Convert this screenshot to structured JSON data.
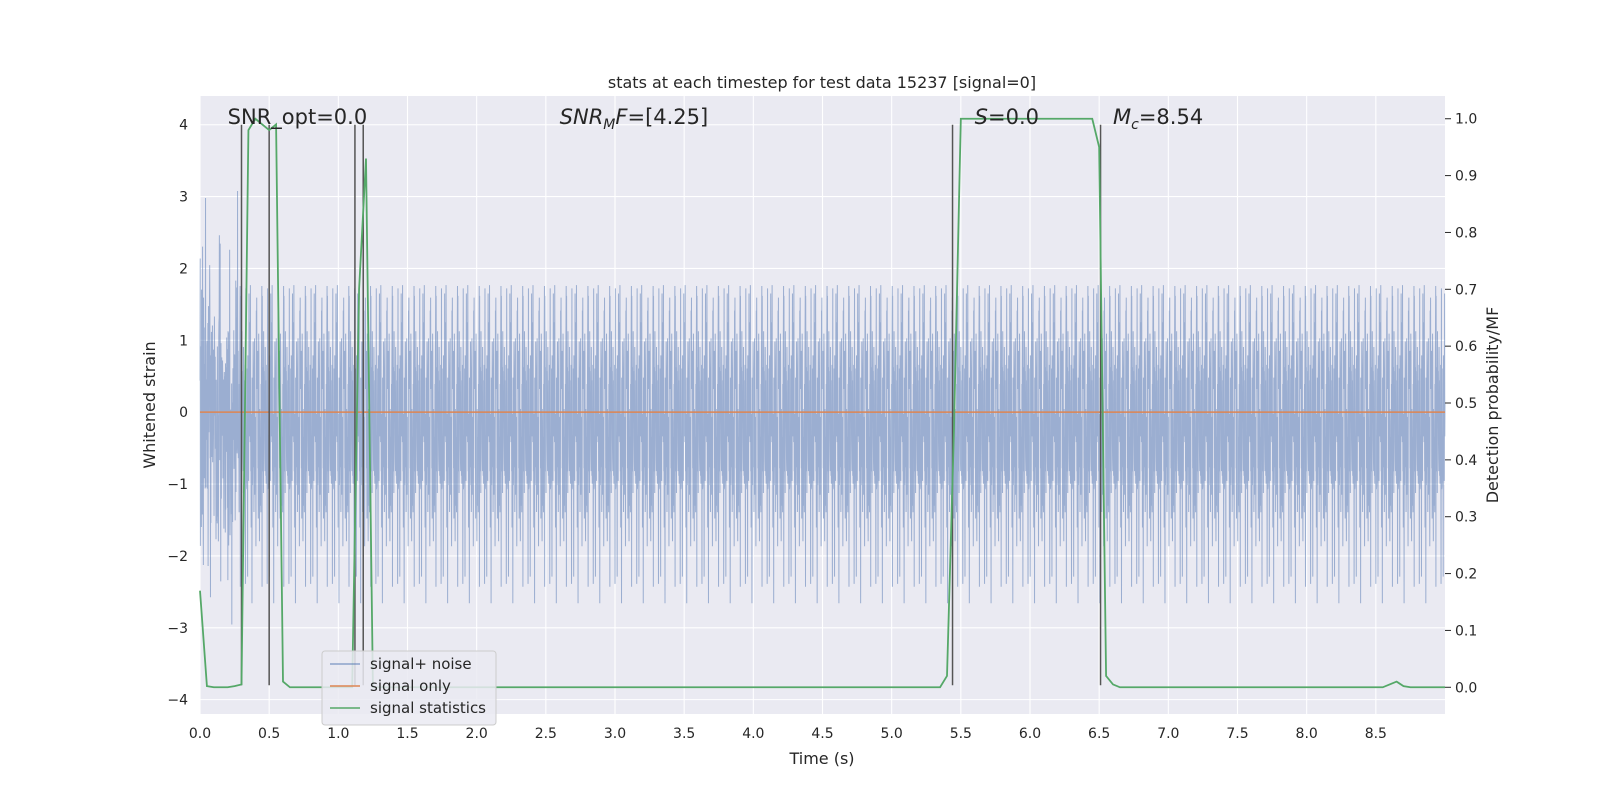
{
  "chart_data": {
    "type": "line",
    "title": "stats at each timestep for test data 15237 [signal=0]",
    "xlabel": "Time (s)",
    "ylabel": "Whitened strain",
    "y2label": "Detection probability/MF",
    "xlim": [
      0.0,
      9.0
    ],
    "ylim": [
      -4.2,
      4.4
    ],
    "y2lim": [
      -0.047,
      1.04
    ],
    "x_ticks": [
      0.0,
      0.5,
      1.0,
      1.5,
      2.0,
      2.5,
      3.0,
      3.5,
      4.0,
      4.5,
      5.0,
      5.5,
      6.0,
      6.5,
      7.0,
      7.5,
      8.0,
      8.5
    ],
    "x_tick_labels": [
      "0.0",
      "0.5",
      "1.0",
      "1.5",
      "2.0",
      "2.5",
      "3.0",
      "3.5",
      "4.0",
      "4.5",
      "5.0",
      "5.5",
      "6.0",
      "6.5",
      "7.0",
      "7.5",
      "8.0",
      "8.5"
    ],
    "y_ticks": [
      -4,
      -3,
      -2,
      -1,
      0,
      1,
      2,
      3,
      4
    ],
    "y_tick_labels": [
      "−4",
      "−3",
      "−2",
      "−1",
      "0",
      "1",
      "2",
      "3",
      "4"
    ],
    "y2_ticks": [
      0.0,
      0.1,
      0.2,
      0.3,
      0.4,
      0.5,
      0.6,
      0.7,
      0.8,
      0.9,
      1.0
    ],
    "y2_tick_labels": [
      "0.0",
      "0.1",
      "0.2",
      "0.3",
      "0.4",
      "0.5",
      "0.6",
      "0.7",
      "0.8",
      "0.9",
      "1.0"
    ],
    "grid": true,
    "legend_position": "lower-left",
    "annotations": [
      {
        "text": "SNR_opt=0.0",
        "x": 0.2
      },
      {
        "text": "SNR_MF=[4.25]",
        "x": 2.6,
        "main": "SNR",
        "sub": "M",
        "tail": "F=[4.25]",
        "italic": true
      },
      {
        "text": "S=0.0",
        "x": 5.6,
        "main": "S",
        "tail": "=0.0",
        "italic": true
      },
      {
        "text": "M_c=8.54",
        "x": 6.6,
        "main": "M",
        "sub": "c",
        "tail": "=8.54",
        "italic": true
      }
    ],
    "series": [
      {
        "name": "signal+ noise",
        "color": "#4c72b0",
        "opacity": 0.5,
        "x_range": [
          0.0,
          9.0
        ],
        "sample_rate_hz": 2048,
        "noise_sigma": 1.0,
        "envelope_y": [
          -3.0,
          3.9
        ]
      },
      {
        "name": "signal only",
        "color": "#dd8452",
        "x": [
          0.0,
          9.0
        ],
        "y": [
          0.0,
          0.0
        ]
      },
      {
        "name": "signal statistics",
        "color": "#55a868",
        "axis": "y2",
        "x": [
          0.0,
          0.05,
          0.1,
          0.15,
          0.2,
          0.25,
          0.3,
          0.35,
          0.4,
          0.45,
          0.5,
          0.55,
          0.6,
          0.65,
          0.7,
          0.75,
          0.8,
          0.85,
          0.9,
          0.95,
          1.0,
          1.05,
          1.1,
          1.15,
          1.2,
          1.25,
          1.3,
          1.35,
          1.4,
          1.45,
          1.5,
          2.0,
          2.5,
          3.0,
          3.5,
          4.0,
          4.5,
          5.0,
          5.2,
          5.25,
          5.3,
          5.35,
          5.4,
          5.45,
          5.5,
          5.55,
          5.6,
          5.65,
          6.0,
          6.45,
          6.5,
          6.55,
          6.6,
          6.65,
          6.7,
          7.0,
          7.5,
          8.0,
          8.5,
          8.55,
          8.6,
          8.65,
          8.7,
          8.75,
          9.0
        ],
        "y": [
          0.17,
          0.002,
          0.0,
          0.0,
          0.0,
          0.002,
          0.005,
          0.98,
          1.0,
          0.99,
          0.98,
          0.99,
          0.01,
          0.0,
          0.0,
          0.0,
          0.0,
          0.0,
          0.0,
          0.0,
          0.0,
          0.0,
          0.0,
          0.7,
          0.93,
          0.0,
          0.0,
          0.0,
          0.0,
          0.0,
          0.0,
          0.0,
          0.0,
          0.0,
          0.0,
          0.0,
          0.0,
          0.0,
          0.0,
          0.0,
          0.0,
          0.0,
          0.02,
          0.45,
          1.0,
          1.0,
          1.0,
          1.0,
          1.0,
          1.0,
          0.95,
          0.02,
          0.005,
          0.0,
          0.0,
          0.0,
          0.0,
          0.0,
          0.0,
          0.0,
          0.005,
          0.01,
          0.002,
          0.0,
          0.0
        ]
      }
    ],
    "vertical_markers_x": [
      0.3,
      0.5,
      1.12,
      1.18,
      5.44,
      6.51
    ]
  }
}
